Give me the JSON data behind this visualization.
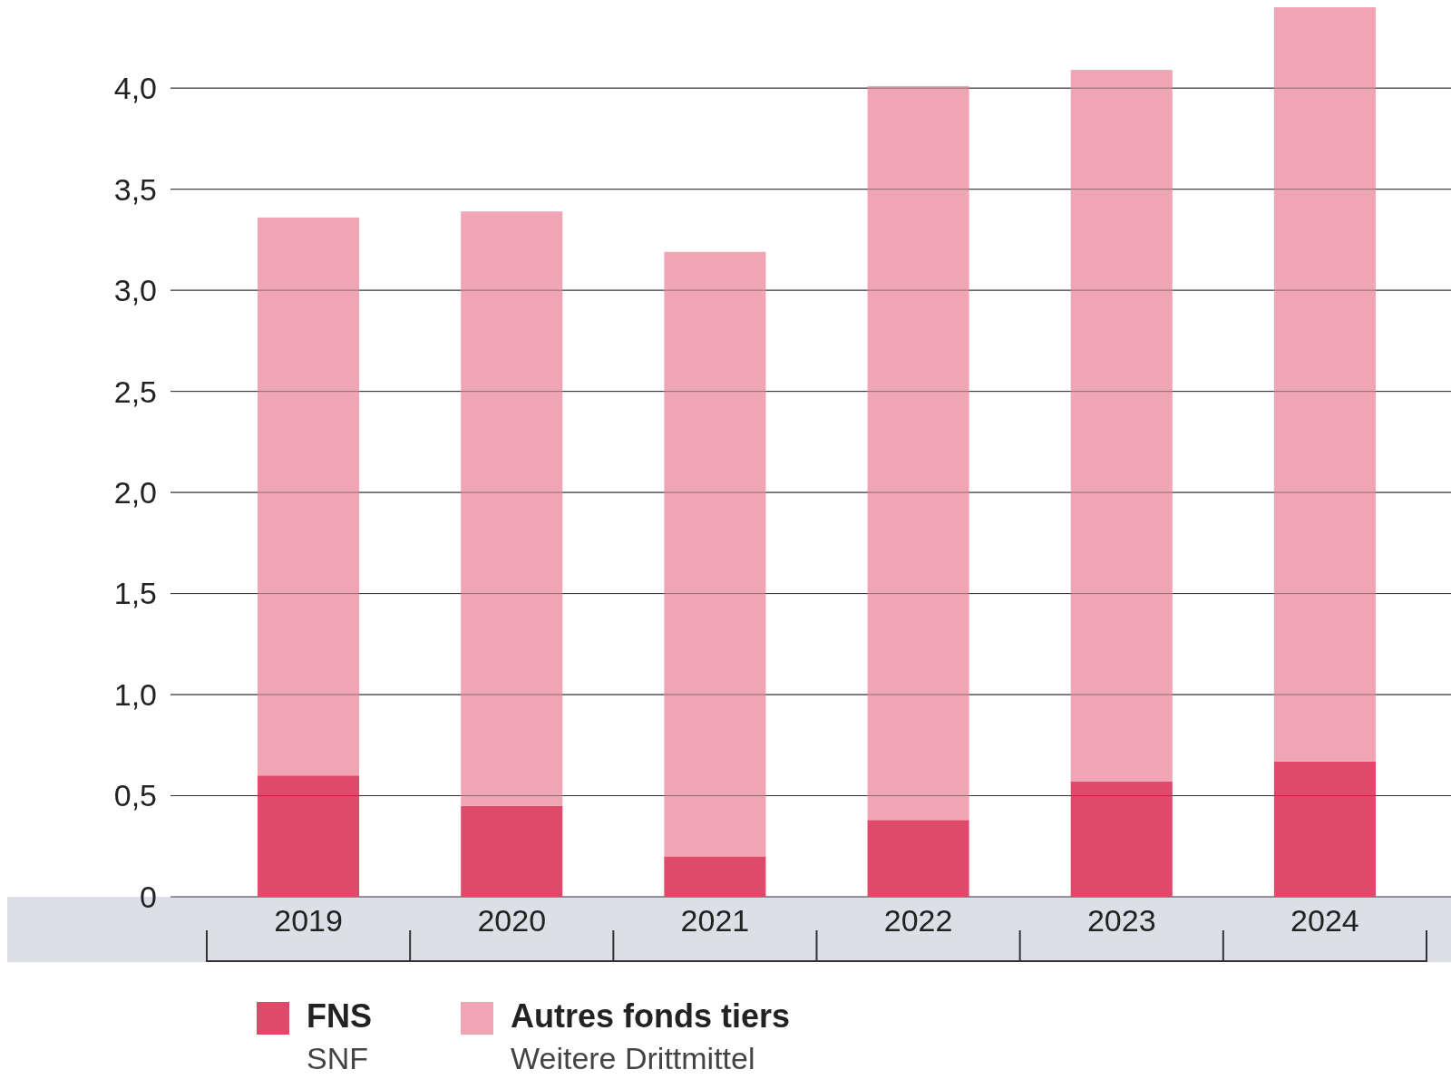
{
  "chart_data": {
    "type": "bar",
    "stacked": true,
    "categories": [
      "2019",
      "2020",
      "2021",
      "2022",
      "2023",
      "2024"
    ],
    "series": [
      {
        "name": "FNS\nSNF",
        "color": "#e04a6a",
        "values": [
          0.6,
          0.45,
          0.2,
          0.38,
          0.57,
          0.67
        ]
      },
      {
        "name": "Autres fonds tiers\nWeitere Drittmittel",
        "color": "#f0a5b4",
        "values": [
          2.76,
          2.94,
          2.99,
          3.63,
          3.52,
          3.73
        ]
      }
    ],
    "ylim": [
      0,
      4.4
    ],
    "yticks": [
      0,
      {
        "value": 0.5,
        "label": "0,5"
      },
      {
        "value": 1,
        "label": "1,0"
      },
      {
        "value": 1.5,
        "label": "1,5"
      },
      {
        "value": 2,
        "label": "2,0"
      },
      {
        "value": 2.5,
        "label": "2,5"
      },
      {
        "value": 3,
        "label": "3,0"
      },
      {
        "value": 3.5,
        "label": "3,5"
      },
      {
        "value": 4,
        "label": "4,0"
      }
    ],
    "grid": "y",
    "legend": "bottom"
  }
}
